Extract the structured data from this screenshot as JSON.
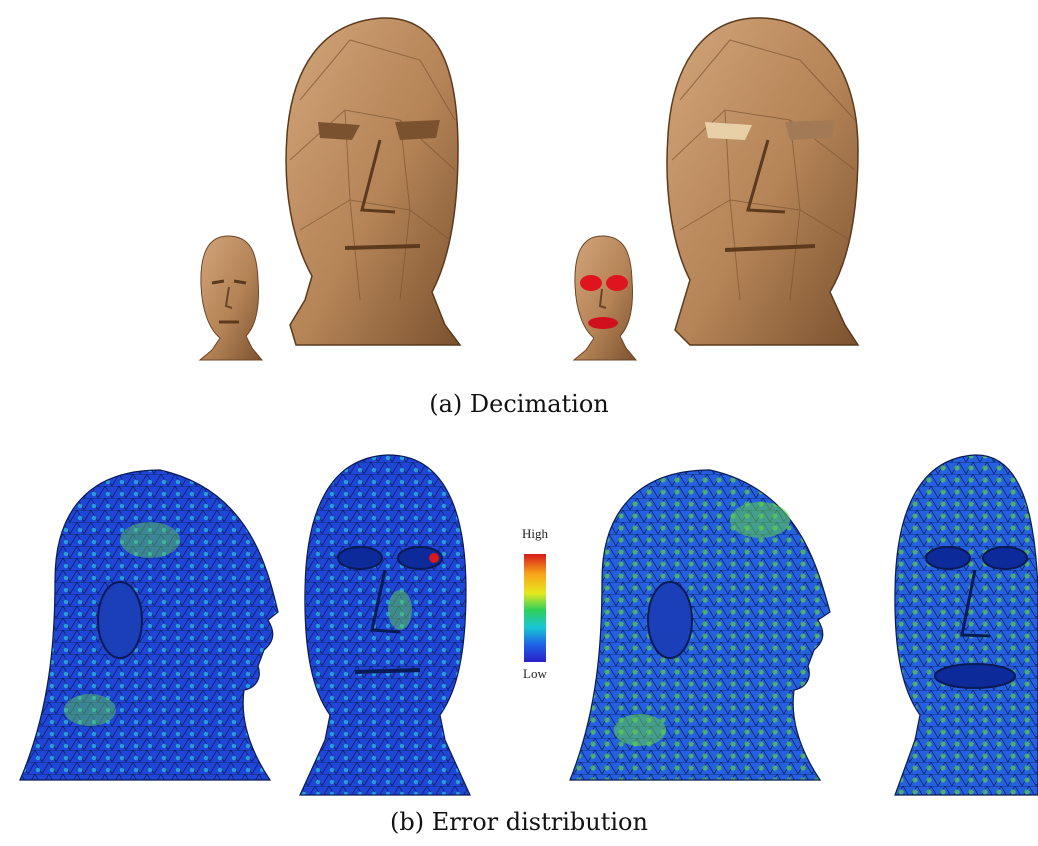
{
  "figure": {
    "panel_a": {
      "caption": "(a) Decimation"
    },
    "panel_b": {
      "caption": "(b) Error distribution",
      "colorbar": {
        "high_label": "High",
        "low_label": "Low",
        "colors": [
          "#d7191c",
          "#f7a21b",
          "#e8e81e",
          "#2fd05a",
          "#19c6d6",
          "#1e63e8",
          "#2a1fc8"
        ]
      }
    },
    "colors": {
      "skin": "#b98a5c",
      "skin_dark": "#7d5532",
      "skin_light": "#d7ad80",
      "highlight": "#e0141e",
      "mesh_blue": "#1f47d6",
      "mesh_cyan": "#22b8d8",
      "mesh_green": "#5fd04a"
    }
  }
}
